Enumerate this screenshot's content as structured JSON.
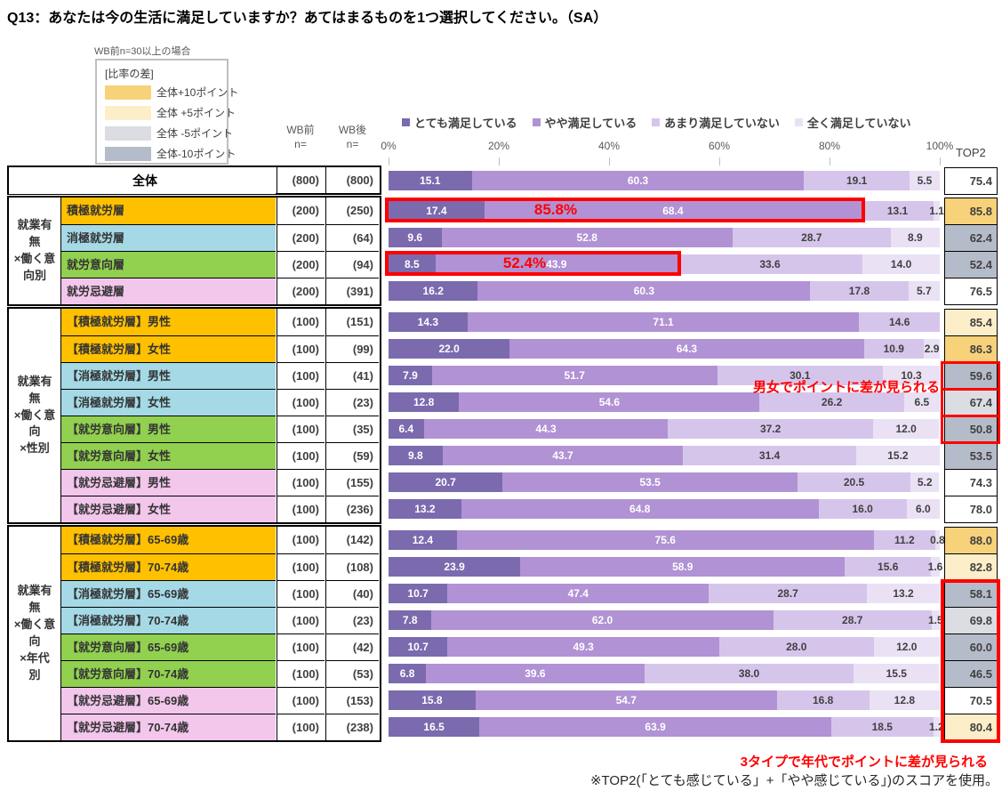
{
  "title": "Q13：あなたは今の生活に満足していますか？あてはまるものを1つ選択してください。（SA）",
  "diff_legend": {
    "condition": "WB前n=30以上の場合",
    "heading": "[比率の差]",
    "items": [
      {
        "label": "全体+10ポイント",
        "color": "#F7D27A"
      },
      {
        "label": "全体 +5ポイント",
        "color": "#FCEEC9"
      },
      {
        "label": "全体 -5ポイント",
        "color": "#DBDDE2"
      },
      {
        "label": "全体-10ポイント",
        "color": "#B5BCC9"
      }
    ]
  },
  "columns": {
    "wb_before": "WB前\nn=",
    "wb_after": "WB後\nn=",
    "top2": "TOP2"
  },
  "colors": {
    "segments": [
      "#7B6AAE",
      "#B192D4",
      "#D6C5EB",
      "#EAE1F5"
    ],
    "row_labels": {
      "orange": "#FFC000",
      "blue": "#A5D9E6",
      "green": "#92D050",
      "pink": "#F3C6EC",
      "none": "#FFFFFF"
    },
    "top2": {
      "plus10": "#F7D27A",
      "plus5": "#FCEEC9",
      "minus5": "#DBDDE2",
      "minus10": "#B5BCC9",
      "none": "#FFFFFF"
    },
    "highlight": "#FF0000"
  },
  "chart_data": {
    "type": "bar",
    "orientation": "horizontal",
    "stacked": true,
    "x_axis": {
      "range": [
        0,
        100
      ],
      "ticks": [
        "0%",
        "20%",
        "40%",
        "60%",
        "80%",
        "100%"
      ]
    },
    "series_names": [
      "とても満足している",
      "やや満足している",
      "あまり満足していない",
      "全く満足していない"
    ],
    "groups": [
      {
        "header": null,
        "rows": [
          {
            "label": "全体",
            "row_color": "none",
            "wb_before": "(800)",
            "wb_after": "(800)",
            "values": [
              15.1,
              60.3,
              19.1,
              5.5
            ],
            "top2": "75.4",
            "top2_class": "none"
          }
        ]
      },
      {
        "header": "就業有\n無\n×働く意\n向別",
        "rows": [
          {
            "label": "積極就労層",
            "row_color": "orange",
            "wb_before": "(200)",
            "wb_after": "(250)",
            "values": [
              17.4,
              68.4,
              13.1,
              1.1
            ],
            "top2": "85.8",
            "top2_class": "plus10"
          },
          {
            "label": "消極就労層",
            "row_color": "blue",
            "wb_before": "(200)",
            "wb_after": "(64)",
            "values": [
              9.6,
              52.8,
              28.7,
              8.9
            ],
            "top2": "62.4",
            "top2_class": "minus10"
          },
          {
            "label": "就労意向層",
            "row_color": "green",
            "wb_before": "(200)",
            "wb_after": "(94)",
            "values": [
              8.5,
              43.9,
              33.6,
              14.0
            ],
            "top2": "52.4",
            "top2_class": "minus10"
          },
          {
            "label": "就労忌避層",
            "row_color": "pink",
            "wb_before": "(200)",
            "wb_after": "(391)",
            "values": [
              16.2,
              60.3,
              17.8,
              5.7
            ],
            "top2": "76.5",
            "top2_class": "none"
          }
        ]
      },
      {
        "header": "就業有\n無\n×働く意\n向\n×性別",
        "rows": [
          {
            "label": "【積極就労層】男性",
            "row_color": "orange",
            "wb_before": "(100)",
            "wb_after": "(151)",
            "values": [
              14.3,
              71.1,
              14.6,
              0
            ],
            "top2": "85.4",
            "top2_class": "plus5"
          },
          {
            "label": "【積極就労層】女性",
            "row_color": "orange",
            "wb_before": "(100)",
            "wb_after": "(99)",
            "values": [
              22.0,
              64.3,
              10.9,
              2.9
            ],
            "top2": "86.3",
            "top2_class": "plus10"
          },
          {
            "label": "【消極就労層】男性",
            "row_color": "blue",
            "wb_before": "(100)",
            "wb_after": "(41)",
            "values": [
              7.9,
              51.7,
              30.1,
              10.3
            ],
            "top2": "59.6",
            "top2_class": "minus10"
          },
          {
            "label": "【消極就労層】女性",
            "row_color": "blue",
            "wb_before": "(100)",
            "wb_after": "(23)",
            "values": [
              12.8,
              54.6,
              26.2,
              6.5
            ],
            "top2": "67.4",
            "top2_class": "minus5"
          },
          {
            "label": "【就労意向層】男性",
            "row_color": "green",
            "wb_before": "(100)",
            "wb_after": "(35)",
            "values": [
              6.4,
              44.3,
              37.2,
              12.0
            ],
            "top2": "50.8",
            "top2_class": "minus10"
          },
          {
            "label": "【就労意向層】女性",
            "row_color": "green",
            "wb_before": "(100)",
            "wb_after": "(59)",
            "values": [
              9.8,
              43.7,
              31.4,
              15.2
            ],
            "top2": "53.5",
            "top2_class": "minus10"
          },
          {
            "label": "【就労忌避層】男性",
            "row_color": "pink",
            "wb_before": "(100)",
            "wb_after": "(155)",
            "values": [
              20.7,
              53.5,
              20.5,
              5.2
            ],
            "top2": "74.3",
            "top2_class": "none"
          },
          {
            "label": "【就労忌避層】女性",
            "row_color": "pink",
            "wb_before": "(100)",
            "wb_after": "(236)",
            "values": [
              13.2,
              64.8,
              16.0,
              6.0
            ],
            "top2": "78.0",
            "top2_class": "none"
          }
        ]
      },
      {
        "header": "就業有\n無\n×働く意\n向\n×年代\n別",
        "rows": [
          {
            "label": "【積極就労層】65-69歳",
            "row_color": "orange",
            "wb_before": "(100)",
            "wb_after": "(142)",
            "values": [
              12.4,
              75.6,
              11.2,
              0.8
            ],
            "top2": "88.0",
            "top2_class": "plus10"
          },
          {
            "label": "【積極就労層】70-74歳",
            "row_color": "orange",
            "wb_before": "(100)",
            "wb_after": "(108)",
            "values": [
              23.9,
              58.9,
              15.6,
              1.6
            ],
            "top2": "82.8",
            "top2_class": "plus5"
          },
          {
            "label": "【消極就労層】65-69歳",
            "row_color": "blue",
            "wb_before": "(100)",
            "wb_after": "(40)",
            "values": [
              10.7,
              47.4,
              28.7,
              13.2
            ],
            "top2": "58.1",
            "top2_class": "minus10"
          },
          {
            "label": "【消極就労層】70-74歳",
            "row_color": "blue",
            "wb_before": "(100)",
            "wb_after": "(23)",
            "values": [
              7.8,
              62.0,
              28.7,
              1.5
            ],
            "top2": "69.8",
            "top2_class": "minus5"
          },
          {
            "label": "【就労意向層】65-69歳",
            "row_color": "green",
            "wb_before": "(100)",
            "wb_after": "(42)",
            "values": [
              10.7,
              49.3,
              28.0,
              12.0
            ],
            "top2": "60.0",
            "top2_class": "minus10"
          },
          {
            "label": "【就労意向層】70-74歳",
            "row_color": "green",
            "wb_before": "(100)",
            "wb_after": "(53)",
            "values": [
              6.8,
              39.6,
              38.0,
              15.5
            ],
            "top2": "46.5",
            "top2_class": "minus10"
          },
          {
            "label": "【就労忌避層】65-69歳",
            "row_color": "pink",
            "wb_before": "(100)",
            "wb_after": "(153)",
            "values": [
              15.8,
              54.7,
              16.8,
              12.8
            ],
            "top2": "70.5",
            "top2_class": "none"
          },
          {
            "label": "【就労忌避層】70-74歳",
            "row_color": "pink",
            "wb_before": "(100)",
            "wb_after": "(238)",
            "values": [
              16.5,
              63.9,
              18.5,
              1.2
            ],
            "top2": "80.4",
            "top2_class": "plus5"
          }
        ]
      }
    ]
  },
  "annotations": {
    "bar_callouts": [
      {
        "group": 1,
        "row": 0,
        "label": "85.8%"
      },
      {
        "group": 1,
        "row": 2,
        "label": "52.4%"
      }
    ],
    "top2_boxes": [
      {
        "group": 2,
        "rows": [
          2,
          3,
          4
        ],
        "merged": false
      },
      {
        "group": 3,
        "rows": [
          2,
          3,
          4,
          5,
          6,
          7
        ],
        "merged": true
      }
    ],
    "note_gender": "男女でポイントに差が見られる",
    "note_age": "3タイプで年代でポイントに差が見られる"
  },
  "footnote": "※TOP2(「とても感じている」+「やや感じている」)のスコアを使用。"
}
